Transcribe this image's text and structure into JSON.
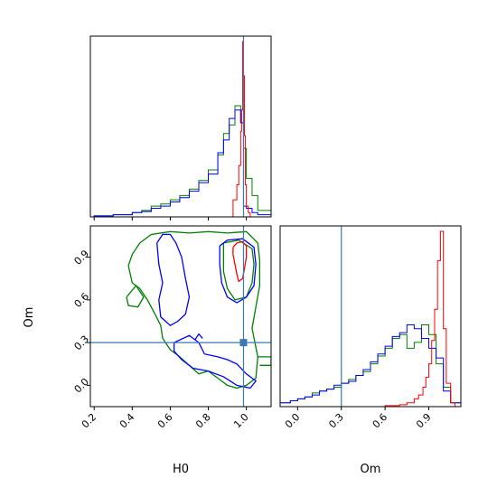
{
  "chart_data": {
    "type": "corner",
    "parameters": [
      "H0",
      "Om"
    ],
    "truths": {
      "H0": 0.985,
      "Om": 0.3
    },
    "colors": {
      "truth": "#3b78b4",
      "blue": "#0000ff",
      "green": "#008000",
      "red": "#ff0000"
    },
    "marginals": {
      "H0": {
        "xlim": [
          0.18,
          1.13
        ],
        "ticks": [
          0.2,
          0.4,
          0.6,
          0.8,
          1.0
        ],
        "tick_labels": [
          "0.2",
          "0.4",
          "0.6",
          "0.8",
          "1.0"
        ],
        "series": [
          {
            "color": "green",
            "edges": [
              0.18,
              0.2,
              0.3,
              0.4,
              0.45,
              0.5,
              0.55,
              0.6,
              0.65,
              0.7,
              0.75,
              0.8,
              0.85,
              0.88,
              0.91,
              0.94,
              0.97,
              0.985,
              1.0,
              1.03,
              1.06,
              1.13
            ],
            "counts": [
              0,
              0.005,
              0.01,
              0.02,
              0.03,
              0.05,
              0.06,
              0.08,
              0.1,
              0.13,
              0.17,
              0.22,
              0.29,
              0.39,
              0.43,
              0.52,
              0.44,
              0.32,
              0.18,
              0.1,
              0.03
            ]
          },
          {
            "color": "blue",
            "edges": [
              0.18,
              0.2,
              0.3,
              0.4,
              0.45,
              0.5,
              0.55,
              0.6,
              0.65,
              0.7,
              0.75,
              0.8,
              0.85,
              0.88,
              0.91,
              0.94,
              0.97,
              0.985,
              1.0,
              1.03,
              1.06,
              1.13
            ],
            "counts": [
              0,
              0.005,
              0.01,
              0.02,
              0.025,
              0.04,
              0.05,
              0.07,
              0.09,
              0.12,
              0.16,
              0.2,
              0.3,
              0.36,
              0.46,
              0.5,
              0.44,
              0.05,
              0.04,
              0.02,
              0.01
            ]
          },
          {
            "color": "red",
            "edges": [
              0.93,
              0.95,
              0.96,
              0.97,
              0.975,
              0.98,
              0.985,
              0.99,
              0.995,
              1.0,
              1.01,
              1.02
            ],
            "counts": [
              0.08,
              0.15,
              0.24,
              0.4,
              0.5,
              0.82,
              0.66,
              0.38,
              0.15,
              0.05,
              0.02
            ]
          }
        ]
      },
      "Om": {
        "xlim": [
          -0.12,
          1.12
        ],
        "ticks": [
          0.0,
          0.3,
          0.6,
          0.9
        ],
        "tick_labels": [
          "0.0",
          "0.3",
          "0.6",
          "0.9"
        ],
        "series": [
          {
            "color": "green",
            "edges": [
              -0.12,
              -0.05,
              0.0,
              0.05,
              0.1,
              0.15,
              0.2,
              0.25,
              0.3,
              0.35,
              0.4,
              0.45,
              0.5,
              0.55,
              0.6,
              0.65,
              0.7,
              0.75,
              0.8,
              0.85,
              0.9,
              0.95,
              1.0,
              1.05,
              1.12
            ],
            "counts": [
              0.02,
              0.03,
              0.04,
              0.05,
              0.07,
              0.08,
              0.09,
              0.1,
              0.12,
              0.14,
              0.16,
              0.18,
              0.22,
              0.26,
              0.3,
              0.35,
              0.37,
              0.3,
              0.33,
              0.42,
              0.37,
              0.22,
              0.1,
              0.02
            ]
          },
          {
            "color": "blue",
            "edges": [
              -0.12,
              -0.05,
              0.0,
              0.05,
              0.1,
              0.15,
              0.2,
              0.25,
              0.3,
              0.35,
              0.4,
              0.45,
              0.5,
              0.55,
              0.6,
              0.65,
              0.7,
              0.75,
              0.8,
              0.85,
              0.9,
              0.95,
              1.0,
              1.05,
              1.12
            ],
            "counts": [
              0.02,
              0.03,
              0.04,
              0.05,
              0.06,
              0.08,
              0.09,
              0.11,
              0.12,
              0.13,
              0.16,
              0.19,
              0.23,
              0.27,
              0.31,
              0.36,
              0.38,
              0.42,
              0.4,
              0.35,
              0.3,
              0.25,
              0.08,
              0.02
            ]
          },
          {
            "color": "red",
            "edges": [
              0.6,
              0.7,
              0.75,
              0.8,
              0.83,
              0.86,
              0.88,
              0.9,
              0.92,
              0.94,
              0.96,
              0.98,
              1.0,
              1.02,
              1.05,
              1.08
            ],
            "counts": [
              0.005,
              0.01,
              0.02,
              0.04,
              0.06,
              0.1,
              0.15,
              0.22,
              0.34,
              0.5,
              0.75,
              0.9,
              0.4,
              0.12,
              0.02
            ]
          }
        ]
      }
    },
    "joint": {
      "xlim": [
        0.18,
        1.13
      ],
      "ylim": [
        -0.15,
        1.12
      ],
      "y_ticks": [
        0.0,
        0.3,
        0.6,
        0.9
      ],
      "y_tick_labels": [
        "0.0",
        "0.3",
        "0.6",
        "0.9"
      ],
      "contours": [
        {
          "color": "green",
          "points": [
            [
              0.44,
              1.0
            ],
            [
              0.5,
              1.06
            ],
            [
              0.6,
              1.08
            ],
            [
              0.7,
              1.07
            ],
            [
              0.8,
              1.08
            ],
            [
              0.9,
              1.07
            ],
            [
              1.0,
              1.08
            ],
            [
              1.06,
              1.0
            ],
            [
              1.07,
              0.88
            ],
            [
              1.07,
              0.7
            ],
            [
              1.05,
              0.55
            ],
            [
              1.03,
              0.4
            ],
            [
              1.06,
              0.2
            ],
            [
              1.05,
              0.05
            ],
            [
              1.0,
              0.0
            ],
            [
              0.95,
              -0.02
            ],
            [
              0.9,
              0.0
            ],
            [
              0.85,
              0.05
            ],
            [
              0.8,
              0.1
            ],
            [
              0.75,
              0.08
            ],
            [
              0.7,
              0.14
            ],
            [
              0.65,
              0.2
            ],
            [
              0.6,
              0.25
            ],
            [
              0.56,
              0.33
            ],
            [
              0.55,
              0.42
            ],
            [
              0.52,
              0.5
            ],
            [
              0.48,
              0.6
            ],
            [
              0.44,
              0.68
            ],
            [
              0.4,
              0.72
            ],
            [
              0.38,
              0.84
            ],
            [
              0.4,
              0.92
            ],
            [
              0.44,
              1.0
            ]
          ]
        },
        {
          "color": "green",
          "points": [
            [
              0.37,
              0.62
            ],
            [
              0.42,
              0.7
            ],
            [
              0.46,
              0.62
            ],
            [
              0.43,
              0.55
            ],
            [
              0.38,
              0.56
            ],
            [
              0.37,
              0.62
            ]
          ]
        },
        {
          "color": "green",
          "points": [
            [
              1.06,
              0.2
            ],
            [
              1.13,
              0.2
            ],
            [
              1.13,
              0.14
            ],
            [
              1.07,
              0.14
            ]
          ]
        },
        {
          "color": "green",
          "points": [
            [
              0.88,
              1.0
            ],
            [
              0.96,
              1.02
            ],
            [
              1.03,
              0.96
            ],
            [
              1.04,
              0.85
            ],
            [
              1.03,
              0.72
            ],
            [
              1.0,
              0.62
            ],
            [
              0.94,
              0.6
            ],
            [
              0.9,
              0.68
            ],
            [
              0.88,
              0.8
            ],
            [
              0.88,
              1.0
            ]
          ]
        },
        {
          "color": "blue",
          "points": [
            [
              0.53,
              1.0
            ],
            [
              0.56,
              1.06
            ],
            [
              0.6,
              1.06
            ],
            [
              0.63,
              1.0
            ],
            [
              0.66,
              0.9
            ],
            [
              0.68,
              0.75
            ],
            [
              0.7,
              0.62
            ],
            [
              0.68,
              0.5
            ],
            [
              0.64,
              0.45
            ],
            [
              0.6,
              0.42
            ],
            [
              0.55,
              0.48
            ],
            [
              0.54,
              0.6
            ],
            [
              0.56,
              0.72
            ],
            [
              0.54,
              0.85
            ],
            [
              0.53,
              1.0
            ]
          ]
        },
        {
          "color": "blue",
          "points": [
            [
              0.62,
              0.3
            ],
            [
              0.7,
              0.35
            ],
            [
              0.75,
              0.3
            ],
            [
              0.78,
              0.22
            ],
            [
              0.85,
              0.2
            ],
            [
              0.9,
              0.18
            ],
            [
              0.95,
              0.15
            ],
            [
              1.0,
              0.08
            ],
            [
              1.05,
              0.03
            ],
            [
              1.02,
              -0.02
            ],
            [
              0.95,
              0.0
            ],
            [
              0.88,
              0.06
            ],
            [
              0.8,
              0.1
            ],
            [
              0.72,
              0.12
            ],
            [
              0.66,
              0.18
            ],
            [
              0.62,
              0.24
            ],
            [
              0.62,
              0.3
            ]
          ]
        },
        {
          "color": "blue",
          "points": [
            [
              0.86,
              0.98
            ],
            [
              0.9,
              1.02
            ],
            [
              0.98,
              1.03
            ],
            [
              1.04,
              0.97
            ],
            [
              1.05,
              0.85
            ],
            [
              1.04,
              0.7
            ],
            [
              1.0,
              0.62
            ],
            [
              0.95,
              0.58
            ],
            [
              0.9,
              0.62
            ],
            [
              0.87,
              0.72
            ],
            [
              0.86,
              0.85
            ],
            [
              0.86,
              0.98
            ]
          ]
        },
        {
          "color": "blue",
          "points": [
            [
              0.73,
              0.32
            ],
            [
              0.75,
              0.36
            ],
            [
              0.77,
              0.33
            ]
          ]
        },
        {
          "color": "red",
          "points": [
            [
              0.93,
              0.97
            ],
            [
              0.95,
              1.0
            ],
            [
              0.98,
              1.01
            ],
            [
              1.0,
              0.98
            ],
            [
              1.0,
              0.9
            ],
            [
              0.99,
              0.82
            ],
            [
              0.98,
              0.75
            ],
            [
              0.96,
              0.73
            ],
            [
              0.95,
              0.78
            ],
            [
              0.94,
              0.85
            ],
            [
              0.93,
              0.92
            ],
            [
              0.93,
              0.97
            ]
          ]
        }
      ]
    }
  }
}
